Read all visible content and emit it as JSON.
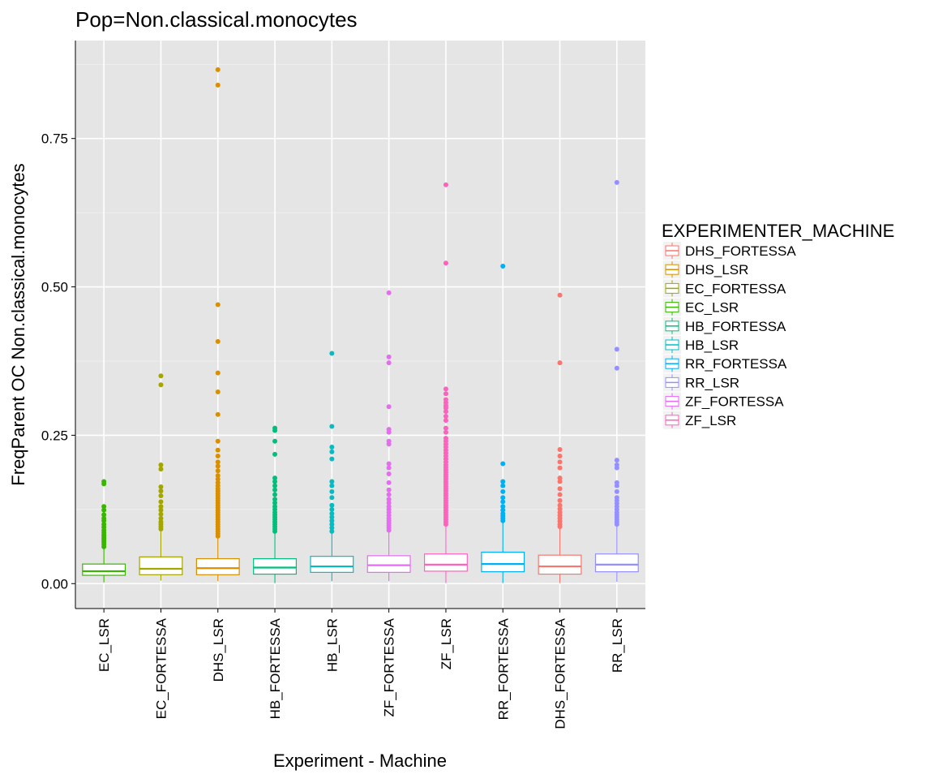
{
  "chart_data": {
    "type": "box",
    "title": "Pop=Non.classical.monocytes",
    "xlabel": "Experiment - Machine",
    "ylabel": "FreqParent OC  Non.classical.monocytes",
    "ylim": [
      -0.042,
      0.915
    ],
    "y_ticks": [
      0.0,
      0.25,
      0.5,
      0.75
    ],
    "y_tick_labels": [
      "0.00",
      "0.25",
      "0.50",
      "0.75"
    ],
    "grid": true,
    "legend": {
      "title": "EXPERIMENTER_MACHINE",
      "position": "right",
      "entries": [
        {
          "name": "DHS_FORTESSA",
          "color": "#F8766D"
        },
        {
          "name": "DHS_LSR",
          "color": "#D89000"
        },
        {
          "name": "EC_FORTESSA",
          "color": "#A3A500"
        },
        {
          "name": "EC_LSR",
          "color": "#39B600"
        },
        {
          "name": "HB_FORTESSA",
          "color": "#00BF7D"
        },
        {
          "name": "HB_LSR",
          "color": "#00BFC4"
        },
        {
          "name": "RR_FORTESSA",
          "color": "#00B0F6"
        },
        {
          "name": "RR_LSR",
          "color": "#9590FF"
        },
        {
          "name": "ZF_FORTESSA",
          "color": "#E76BF3"
        },
        {
          "name": "ZF_LSR",
          "color": "#FF62BC"
        }
      ]
    },
    "categories": [
      "EC_LSR",
      "EC_FORTESSA",
      "DHS_LSR",
      "HB_FORTESSA",
      "HB_LSR",
      "ZF_FORTESSA",
      "ZF_LSR",
      "RR_FORTESSA",
      "DHS_FORTESSA",
      "RR_LSR"
    ],
    "boxes": [
      {
        "category": "EC_LSR",
        "group": "EC_LSR",
        "color": "#39B600",
        "whisker_low": 0.002,
        "q1": 0.014,
        "median": 0.021,
        "q3": 0.033,
        "whisker_high": 0.06,
        "outliers": [
          0.062,
          0.066,
          0.07,
          0.073,
          0.076,
          0.079,
          0.082,
          0.086,
          0.09,
          0.095,
          0.1,
          0.106,
          0.11,
          0.116,
          0.124,
          0.13,
          0.168,
          0.172
        ]
      },
      {
        "category": "EC_FORTESSA",
        "group": "EC_FORTESSA",
        "color": "#A3A500",
        "whisker_low": 0.005,
        "q1": 0.015,
        "median": 0.025,
        "q3": 0.045,
        "whisker_high": 0.088,
        "outliers": [
          0.092,
          0.096,
          0.1,
          0.104,
          0.11,
          0.117,
          0.124,
          0.13,
          0.138,
          0.148,
          0.156,
          0.163,
          0.193,
          0.2,
          0.335,
          0.35
        ]
      },
      {
        "category": "DHS_LSR",
        "group": "DHS_LSR",
        "color": "#D89000",
        "whisker_low": 0.004,
        "q1": 0.015,
        "median": 0.026,
        "q3": 0.042,
        "whisker_high": 0.078,
        "outliers": [
          0.08,
          0.084,
          0.088,
          0.092,
          0.096,
          0.1,
          0.104,
          0.108,
          0.112,
          0.116,
          0.12,
          0.124,
          0.128,
          0.132,
          0.136,
          0.14,
          0.144,
          0.148,
          0.152,
          0.156,
          0.16,
          0.165,
          0.17,
          0.176,
          0.182,
          0.19,
          0.198,
          0.205,
          0.215,
          0.225,
          0.24,
          0.285,
          0.323,
          0.355,
          0.408,
          0.47,
          0.84,
          0.866
        ]
      },
      {
        "category": "HB_FORTESSA",
        "group": "HB_FORTESSA",
        "color": "#00BF7D",
        "whisker_low": 0.001,
        "q1": 0.016,
        "median": 0.027,
        "q3": 0.042,
        "whisker_high": 0.085,
        "outliers": [
          0.088,
          0.092,
          0.096,
          0.1,
          0.104,
          0.108,
          0.112,
          0.116,
          0.12,
          0.125,
          0.13,
          0.136,
          0.142,
          0.15,
          0.158,
          0.165,
          0.172,
          0.178,
          0.218,
          0.24,
          0.258,
          0.262
        ]
      },
      {
        "category": "HB_LSR",
        "group": "HB_LSR",
        "color": "#00BFC4",
        "whisker_low": 0.004,
        "q1": 0.019,
        "median": 0.029,
        "q3": 0.046,
        "whisker_high": 0.085,
        "outliers": [
          0.088,
          0.094,
          0.1,
          0.106,
          0.112,
          0.118,
          0.125,
          0.132,
          0.145,
          0.155,
          0.165,
          0.172,
          0.21,
          0.222,
          0.23,
          0.265,
          0.388
        ]
      },
      {
        "category": "ZF_FORTESSA",
        "group": "ZF_FORTESSA",
        "color": "#E76BF3",
        "whisker_low": 0.004,
        "q1": 0.019,
        "median": 0.031,
        "q3": 0.047,
        "whisker_high": 0.087,
        "outliers": [
          0.09,
          0.094,
          0.098,
          0.102,
          0.106,
          0.11,
          0.115,
          0.12,
          0.125,
          0.13,
          0.136,
          0.142,
          0.15,
          0.158,
          0.17,
          0.185,
          0.195,
          0.202,
          0.235,
          0.24,
          0.255,
          0.26,
          0.298,
          0.372,
          0.382,
          0.49
        ]
      },
      {
        "category": "ZF_LSR",
        "group": "ZF_LSR",
        "color": "#FF62BC",
        "whisker_low": 0.001,
        "q1": 0.021,
        "median": 0.032,
        "q3": 0.05,
        "whisker_high": 0.098,
        "outliers": [
          0.1,
          0.104,
          0.108,
          0.112,
          0.116,
          0.12,
          0.124,
          0.128,
          0.132,
          0.136,
          0.14,
          0.144,
          0.148,
          0.152,
          0.156,
          0.16,
          0.164,
          0.168,
          0.172,
          0.176,
          0.18,
          0.184,
          0.188,
          0.192,
          0.196,
          0.2,
          0.205,
          0.21,
          0.215,
          0.22,
          0.225,
          0.23,
          0.235,
          0.24,
          0.245,
          0.255,
          0.262,
          0.275,
          0.282,
          0.29,
          0.296,
          0.3,
          0.305,
          0.31,
          0.32,
          0.328,
          0.54,
          0.672
        ]
      },
      {
        "category": "RR_FORTESSA",
        "group": "RR_FORTESSA",
        "color": "#00B0F6",
        "whisker_low": 0.001,
        "q1": 0.02,
        "median": 0.033,
        "q3": 0.053,
        "whisker_high": 0.103,
        "outliers": [
          0.106,
          0.11,
          0.114,
          0.118,
          0.124,
          0.13,
          0.138,
          0.145,
          0.155,
          0.165,
          0.172,
          0.202,
          0.535
        ]
      },
      {
        "category": "DHS_FORTESSA",
        "group": "DHS_FORTESSA",
        "color": "#F8766D",
        "whisker_low": 0.001,
        "q1": 0.016,
        "median": 0.029,
        "q3": 0.048,
        "whisker_high": 0.093,
        "outliers": [
          0.096,
          0.1,
          0.105,
          0.11,
          0.115,
          0.12,
          0.126,
          0.132,
          0.14,
          0.15,
          0.16,
          0.172,
          0.178,
          0.195,
          0.205,
          0.215,
          0.226,
          0.372,
          0.486
        ]
      },
      {
        "category": "RR_LSR",
        "group": "RR_LSR",
        "color": "#9590FF",
        "whisker_low": 0.003,
        "q1": 0.02,
        "median": 0.032,
        "q3": 0.05,
        "whisker_high": 0.098,
        "outliers": [
          0.1,
          0.104,
          0.108,
          0.112,
          0.116,
          0.12,
          0.125,
          0.13,
          0.135,
          0.14,
          0.145,
          0.155,
          0.165,
          0.17,
          0.195,
          0.2,
          0.208,
          0.363,
          0.395,
          0.676
        ]
      }
    ]
  }
}
